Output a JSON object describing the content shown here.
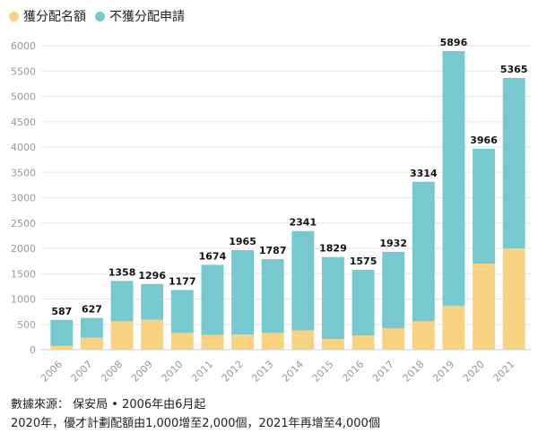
{
  "legend": {
    "items": [
      {
        "label": "獲分配名額",
        "color": "#F7D283"
      },
      {
        "label": "不獲分配申請",
        "color": "#78C8CF"
      }
    ]
  },
  "chart_data": {
    "type": "bar",
    "stacked": true,
    "categories": [
      "2006",
      "2007",
      "2008",
      "2009",
      "2010",
      "2011",
      "2012",
      "2013",
      "2014",
      "2015",
      "2016",
      "2017",
      "2018",
      "2019",
      "2020",
      "2021"
    ],
    "series": [
      {
        "name": "獲分配名額",
        "color": "#F7D283",
        "values": [
          75,
          235,
          560,
          590,
          330,
          290,
          300,
          330,
          380,
          210,
          280,
          420,
          560,
          870,
          1700,
          2000
        ]
      },
      {
        "name": "不獲分配申請",
        "color": "#78C8CF",
        "values": [
          512,
          392,
          798,
          706,
          847,
          1384,
          1665,
          1457,
          1961,
          1619,
          1295,
          1512,
          2754,
          5026,
          2266,
          3365
        ]
      }
    ],
    "totals": [
      587,
      627,
      1358,
      1296,
      1177,
      1674,
      1965,
      1787,
      2341,
      1829,
      1575,
      1932,
      3314,
      5896,
      3966,
      5365
    ],
    "yticks": [
      0,
      500,
      1000,
      1500,
      2000,
      2500,
      3000,
      3500,
      4000,
      4500,
      5000,
      5500,
      6000
    ],
    "ylim": [
      0,
      6000
    ],
    "grid": true,
    "legend_position": "top-left",
    "title": "",
    "xlabel": "",
    "ylabel": ""
  },
  "footer": {
    "line1": "數據來源： 保安局 • 2006年由6月起",
    "line2": "2020年，優才計劃配額由1,000增至2,000個，2021年再增至4,000個"
  }
}
